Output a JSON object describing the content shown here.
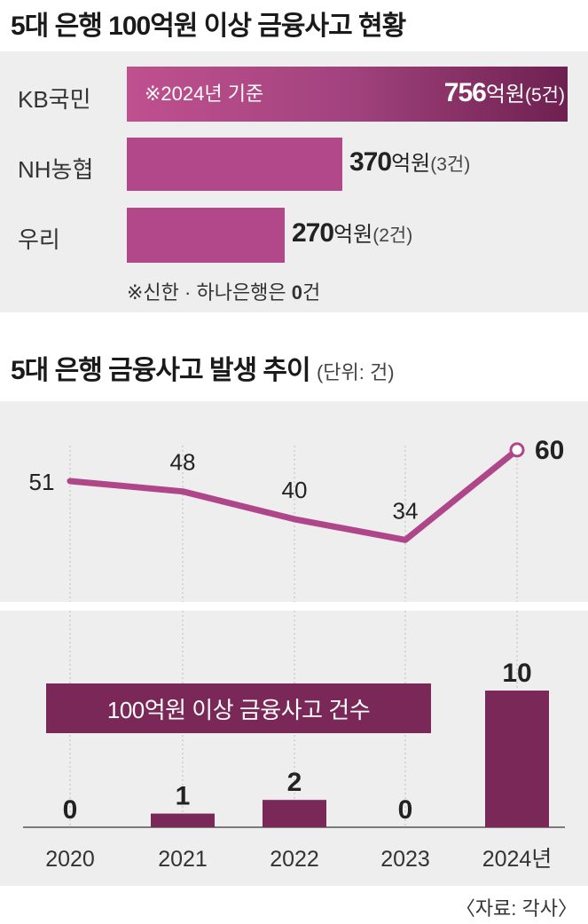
{
  "header_1": "5대 은행 100억원 이상 금융사고 현황",
  "header_2": "5대 은행 금융사고 발생 추이",
  "header_2_unit": "(단위: 건)",
  "bar_note": "※2024년 기준",
  "footnote_prefix": "※신한 · 하나은행은 ",
  "footnote_zero": "0",
  "footnote_suffix": "건",
  "amount_unit": "억원",
  "bar_legend": "100억원 이상 금융사고 건수",
  "source": "〈자료: 각사〉",
  "colors": {
    "bar": "#b2478a",
    "bar_dark": "#6e2050",
    "line": "#b0468a",
    "dark_bar": "#7a2858",
    "panel": "#eeeeef"
  },
  "chart_data": [
    {
      "type": "bar",
      "orientation": "horizontal",
      "title": "5대 은행 100억원 이상 금융사고 현황",
      "categories": [
        "KB국민",
        "NH농협",
        "우리"
      ],
      "values": [
        756,
        370,
        270
      ],
      "value_labels": [
        "756",
        "370",
        "270"
      ],
      "counts": [
        "(5건)",
        "(3건)",
        "(2건)"
      ],
      "unit": "억원"
    },
    {
      "type": "line",
      "title": "5대 은행 금융사고 발생 추이",
      "unit": "건",
      "categories": [
        "2020",
        "2021",
        "2022",
        "2023",
        "2024년"
      ],
      "values": [
        51,
        48,
        40,
        34,
        60
      ],
      "value_labels": [
        "51",
        "48",
        "40",
        "34",
        "60"
      ],
      "ylim": [
        0,
        60
      ]
    },
    {
      "type": "bar",
      "title": "100억원 이상 금융사고 건수",
      "categories": [
        "2020",
        "2021",
        "2022",
        "2023",
        "2024년"
      ],
      "values": [
        0,
        1,
        2,
        0,
        10
      ],
      "value_labels": [
        "0",
        "1",
        "2",
        "0",
        "10"
      ],
      "ylim": [
        0,
        10
      ]
    }
  ]
}
